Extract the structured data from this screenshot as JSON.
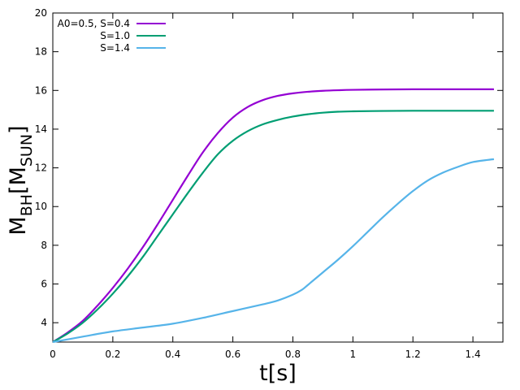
{
  "chart_data": {
    "type": "line",
    "title": "",
    "xlabel": "t[s]",
    "ylabel": {
      "main": "M",
      "main_sub": "BH",
      "unit": "M",
      "unit_sub": "SUN"
    },
    "xlim": [
      0,
      1.5
    ],
    "ylim": [
      3,
      20
    ],
    "x_ticks": [
      0,
      0.2,
      0.4,
      0.6,
      0.8,
      1.0,
      1.2,
      1.4
    ],
    "x_tick_labels": [
      "0",
      "0.2",
      "0.4",
      "0.6",
      "0.8",
      "1",
      "1.2",
      "1.4"
    ],
    "y_ticks": [
      4,
      6,
      8,
      10,
      12,
      14,
      16,
      18,
      20
    ],
    "y_tick_labels": [
      "4",
      "6",
      "8",
      "10",
      "12",
      "14",
      "16",
      "18",
      "20"
    ],
    "grid": false,
    "legend_position": "top-left",
    "series": [
      {
        "name": "A0=0.5, S=0.4",
        "color": "#9400d3",
        "x": [
          0,
          0.05,
          0.1,
          0.15,
          0.2,
          0.25,
          0.3,
          0.35,
          0.4,
          0.45,
          0.5,
          0.55,
          0.6,
          0.65,
          0.7,
          0.75,
          0.8,
          0.85,
          0.9,
          0.95,
          1.0,
          1.1,
          1.2,
          1.3,
          1.4,
          1.47
        ],
        "y": [
          3.0,
          3.5,
          4.1,
          4.9,
          5.8,
          6.8,
          7.9,
          9.1,
          10.35,
          11.6,
          12.8,
          13.8,
          14.6,
          15.15,
          15.5,
          15.72,
          15.85,
          15.93,
          15.98,
          16.01,
          16.03,
          16.05,
          16.06,
          16.06,
          16.06,
          16.06
        ]
      },
      {
        "name": "S=1.0",
        "color": "#009e73",
        "x": [
          0,
          0.05,
          0.1,
          0.15,
          0.2,
          0.25,
          0.3,
          0.35,
          0.4,
          0.45,
          0.5,
          0.55,
          0.6,
          0.65,
          0.7,
          0.75,
          0.8,
          0.85,
          0.9,
          0.95,
          1.0,
          1.1,
          1.2,
          1.3,
          1.4,
          1.47
        ],
        "y": [
          3.0,
          3.45,
          4.0,
          4.7,
          5.5,
          6.4,
          7.4,
          8.5,
          9.6,
          10.7,
          11.75,
          12.7,
          13.4,
          13.9,
          14.25,
          14.48,
          14.65,
          14.77,
          14.85,
          14.9,
          14.92,
          14.94,
          14.95,
          14.95,
          14.95,
          14.95
        ]
      },
      {
        "name": "S=1.4",
        "color": "#56b4e9",
        "x": [
          0,
          0.1,
          0.2,
          0.3,
          0.4,
          0.5,
          0.6,
          0.7,
          0.75,
          0.8,
          0.83,
          0.85,
          0.9,
          0.95,
          1.0,
          1.05,
          1.1,
          1.15,
          1.2,
          1.25,
          1.3,
          1.35,
          1.4,
          1.47
        ],
        "y": [
          3.0,
          3.28,
          3.55,
          3.75,
          3.95,
          4.25,
          4.6,
          4.95,
          5.15,
          5.45,
          5.7,
          5.95,
          6.6,
          7.25,
          7.95,
          8.7,
          9.45,
          10.15,
          10.8,
          11.35,
          11.75,
          12.05,
          12.3,
          12.45
        ]
      }
    ]
  }
}
